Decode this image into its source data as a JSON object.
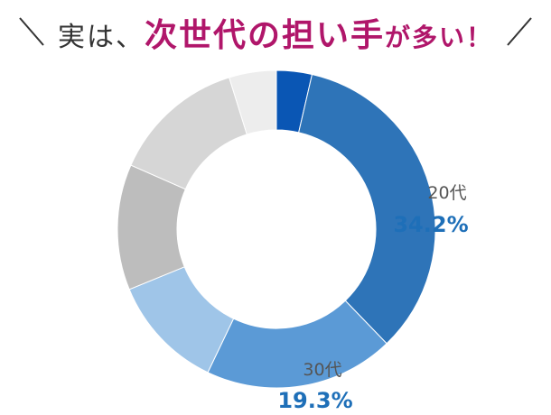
{
  "headline": {
    "part1": "実は、",
    "part2": "次世代の担い手",
    "part3": "が多い！"
  },
  "chart_data": {
    "type": "pie",
    "variant": "donut",
    "title": "",
    "start_angle_deg": 0,
    "direction": "clockwise",
    "slices": [
      {
        "label": "",
        "value": 3.6,
        "color": "#0a56b4"
      },
      {
        "label": "20代",
        "value": 34.2,
        "value_text": "34.2%",
        "color": "#2e74b8"
      },
      {
        "label": "30代",
        "value": 19.3,
        "value_text": "19.3%",
        "color": "#5b9ad6"
      },
      {
        "label": "",
        "value": 11.7,
        "color": "#9fc5e8"
      },
      {
        "label": "",
        "value": 12.8,
        "color": "#bdbdbd"
      },
      {
        "label": "",
        "value": 13.6,
        "color": "#d6d6d6"
      },
      {
        "label": "",
        "value": 4.8,
        "color": "#ededed"
      }
    ],
    "labeled": [
      {
        "index": 1,
        "category": "20代",
        "percent": "34.2%"
      },
      {
        "index": 2,
        "category": "30代",
        "percent": "19.3%"
      }
    ]
  }
}
